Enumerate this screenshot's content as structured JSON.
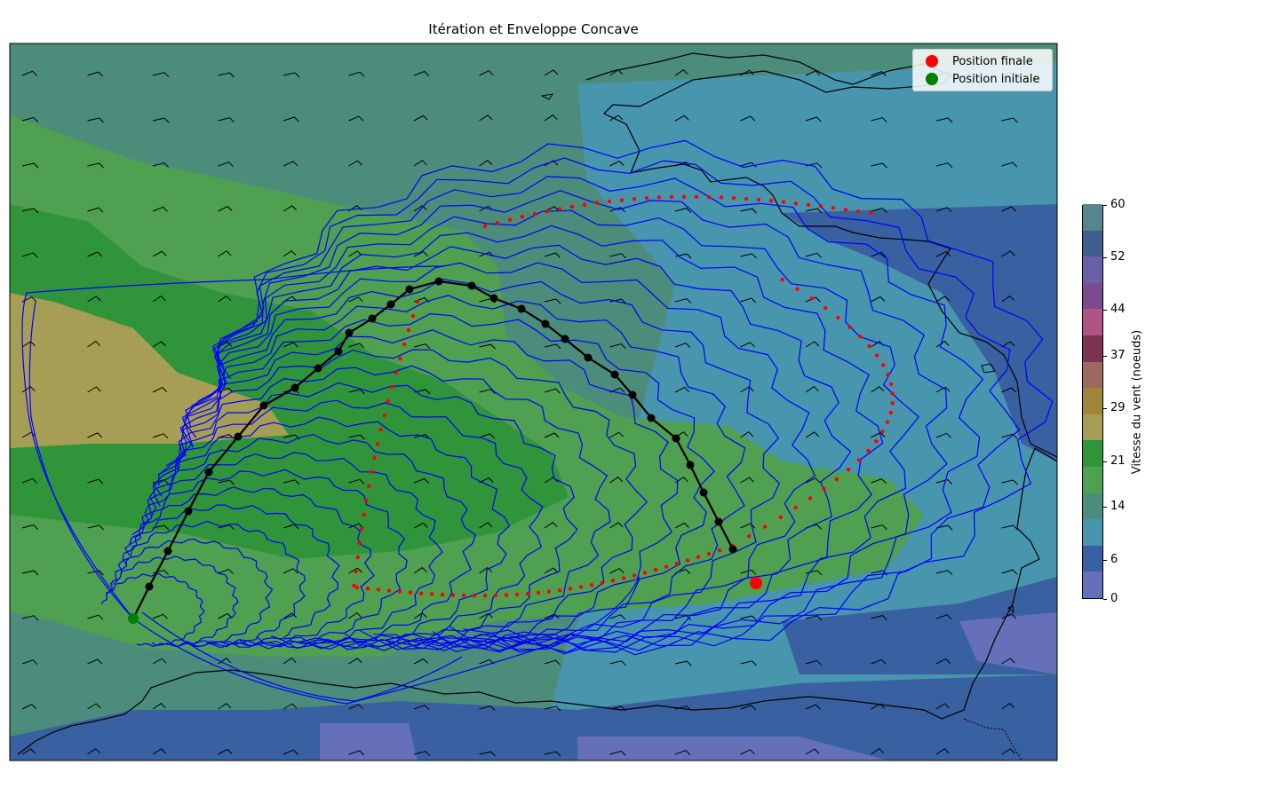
{
  "title": "Itération et Enveloppe Concave",
  "legend": {
    "final_label": "Position finale",
    "initial_label": "Position initiale",
    "final_color": "#ff0000",
    "initial_color": "#008000"
  },
  "colorbar": {
    "label": "Vitesse du vent (noeuds)",
    "ticks": [
      "0",
      "6",
      "14",
      "21",
      "29",
      "37",
      "44",
      "52",
      "60"
    ],
    "range": [
      0,
      60
    ],
    "colors": [
      "#6670b8",
      "#3960a0",
      "#4895ae",
      "#4c8c7b",
      "#4fa050",
      "#30953a",
      "#a79e55",
      "#a08439",
      "#9c6860",
      "#7c3550",
      "#b05385",
      "#7a4b8e",
      "#6a60a8",
      "#3f5e8c",
      "#55868e"
    ]
  },
  "colors": {
    "route": "#000000",
    "isochrones": "#0000ff",
    "envelope_points": "#ff0000",
    "coastline": "#000000"
  }
}
